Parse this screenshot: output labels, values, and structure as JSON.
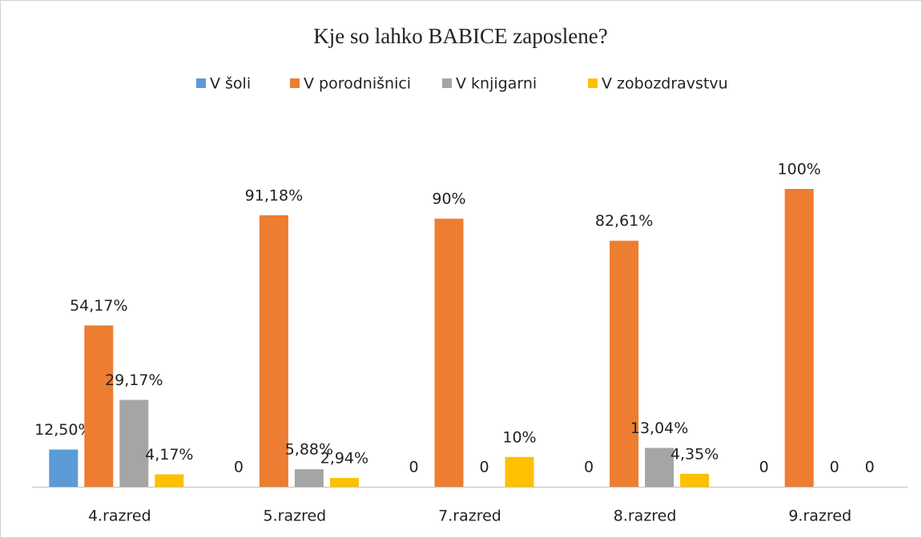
{
  "chart_data": {
    "type": "bar",
    "title": "Kje so lahko BABICE zaposlene?",
    "categories": [
      "4.razred",
      "5.razred",
      "7.razred",
      "8.razred",
      "9.razred"
    ],
    "series": [
      {
        "name": "V šoli",
        "color": "#5b9bd5",
        "values": [
          12.5,
          0,
          0,
          0,
          0
        ],
        "value_labels": [
          "12,50%",
          "0",
          "0",
          "0",
          "0"
        ]
      },
      {
        "name": "V porodnišnici",
        "color": "#ed7d31",
        "values": [
          54.17,
          91.18,
          90,
          82.61,
          100
        ],
        "value_labels": [
          "54,17%",
          "91,18%",
          "90%",
          "82,61%",
          "100%"
        ]
      },
      {
        "name": "V knjigarni",
        "color": "#a5a5a5",
        "values": [
          29.17,
          5.88,
          0,
          13.04,
          0
        ],
        "value_labels": [
          "29,17%",
          "5,88%",
          "0",
          "13,04%",
          "0"
        ]
      },
      {
        "name": "V zobozdravstvu",
        "color": "#ffc000",
        "values": [
          4.17,
          2.94,
          10,
          4.35,
          0
        ],
        "value_labels": [
          "4,17%",
          "2,94%",
          "10%",
          "4,35%",
          "0"
        ]
      }
    ],
    "legend": "top"
  }
}
